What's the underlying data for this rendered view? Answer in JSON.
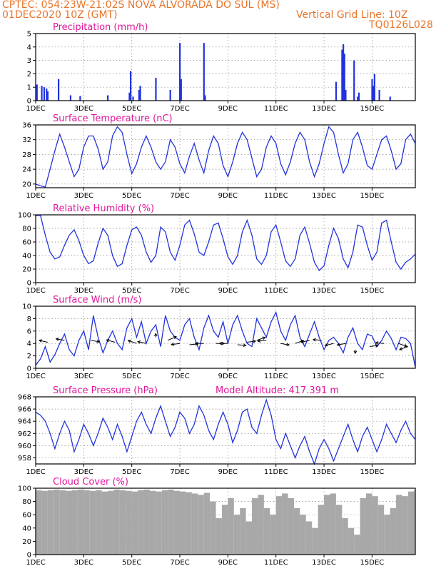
{
  "header": {
    "line1_left": "CPTEC:  054:23W-21:02S  NOVA ALVORADA DO SUL (MS)",
    "line2_left": "01DEC2020 10Z (GMT)",
    "line2_right": "Vertical Grid Line: 10Z",
    "line3_right": "TQ0126L028"
  },
  "colors": {
    "title": "#e0169b",
    "header": "#e8752a",
    "series": "#2233dd",
    "cloud": "#a8a8a8"
  },
  "x_axis": {
    "days": 15.8,
    "tick_days": [
      0,
      2,
      4,
      6,
      8,
      10,
      12,
      14
    ],
    "tick_labels": [
      "1DEC",
      "3DEC",
      "5DEC",
      "7DEC",
      "9DEC",
      "11DEC",
      "13DEC",
      "15DEC"
    ]
  },
  "chart_data": [
    {
      "type": "bar",
      "title": "Precipitation (mm/h)",
      "ylim": [
        0,
        5
      ],
      "yticks": [
        "0",
        "1",
        "2",
        "3",
        "4",
        "5"
      ],
      "series": [
        {
          "name": "precip",
          "x": [
            0.05,
            0.25,
            0.35,
            0.45,
            0.5,
            0.95,
            1.45,
            1.85,
            3.0,
            3.9,
            3.95,
            4.05,
            4.3,
            4.35,
            5.0,
            5.6,
            6.0,
            6.05,
            7.0,
            7.05,
            12.5,
            12.75,
            12.8,
            12.85,
            12.9,
            13.25,
            13.4,
            13.45,
            14.0,
            14.05,
            14.1,
            14.3,
            14.75
          ],
          "values": [
            1.2,
            1.1,
            1.0,
            0.9,
            0.7,
            1.6,
            0.4,
            0.35,
            0.4,
            0.6,
            2.2,
            0.3,
            0.8,
            1.1,
            1.7,
            0.8,
            4.3,
            1.6,
            4.3,
            0.4,
            1.4,
            3.8,
            4.2,
            3.5,
            0.8,
            3.0,
            0.3,
            0.6,
            1.6,
            1.1,
            2.0,
            0.8,
            0.3
          ]
        }
      ]
    },
    {
      "type": "line",
      "title": "Surface Temperature (nC)",
      "ylim": [
        19,
        36
      ],
      "yticks": [
        "20",
        "24",
        "28",
        "32",
        "36"
      ],
      "series": [
        {
          "name": "temp",
          "x": [
            0,
            0.2,
            0.4,
            0.6,
            0.8,
            1,
            1.2,
            1.4,
            1.6,
            1.8,
            2,
            2.2,
            2.4,
            2.6,
            2.8,
            3,
            3.2,
            3.4,
            3.6,
            3.8,
            4,
            4.2,
            4.4,
            4.6,
            4.8,
            5,
            5.2,
            5.4,
            5.6,
            5.8,
            6,
            6.2,
            6.4,
            6.6,
            6.8,
            7,
            7.2,
            7.4,
            7.6,
            7.8,
            8,
            8.2,
            8.4,
            8.6,
            8.8,
            9,
            9.2,
            9.4,
            9.6,
            9.8,
            10,
            10.2,
            10.4,
            10.6,
            10.8,
            11,
            11.2,
            11.4,
            11.6,
            11.8,
            12,
            12.2,
            12.4,
            12.6,
            12.8,
            13,
            13.2,
            13.4,
            13.6,
            13.8,
            14,
            14.2,
            14.4,
            14.6,
            14.8,
            15,
            15.2,
            15.4,
            15.6,
            15.8
          ],
          "values": [
            20,
            19.5,
            19.2,
            24,
            29,
            33.5,
            30,
            26,
            22,
            24,
            30,
            33,
            33,
            29.5,
            24,
            26,
            33,
            35.5,
            34,
            28,
            22.8,
            25.5,
            30,
            33,
            30,
            26,
            24,
            26,
            32,
            30,
            25.5,
            23,
            27.5,
            31,
            26.5,
            23,
            29,
            33,
            31,
            25,
            22,
            26,
            31,
            34,
            32,
            27,
            22,
            24,
            30,
            33,
            31,
            25.5,
            22.5,
            26,
            31,
            34,
            32,
            26,
            22,
            25.5,
            31,
            35.5,
            34,
            28,
            23,
            25.5,
            32,
            34,
            30,
            25,
            24,
            28,
            32,
            33,
            29,
            24,
            25.5,
            32,
            33.5,
            31
          ]
        }
      ]
    },
    {
      "type": "line",
      "title": "Relative Humidity (%)",
      "ylim": [
        0,
        100
      ],
      "yticks": [
        "0",
        "20",
        "40",
        "60",
        "80",
        "100"
      ],
      "series": [
        {
          "name": "rh",
          "x": [
            0,
            0.2,
            0.4,
            0.6,
            0.8,
            1,
            1.2,
            1.4,
            1.6,
            1.8,
            2,
            2.2,
            2.4,
            2.6,
            2.8,
            3,
            3.2,
            3.4,
            3.6,
            3.8,
            4,
            4.2,
            4.4,
            4.6,
            4.8,
            5,
            5.2,
            5.4,
            5.6,
            5.8,
            6,
            6.2,
            6.4,
            6.6,
            6.8,
            7,
            7.2,
            7.4,
            7.6,
            7.8,
            8,
            8.2,
            8.4,
            8.6,
            8.8,
            9,
            9.2,
            9.4,
            9.6,
            9.8,
            10,
            10.2,
            10.4,
            10.6,
            10.8,
            11,
            11.2,
            11.4,
            11.6,
            11.8,
            12,
            12.2,
            12.4,
            12.6,
            12.8,
            13,
            13.2,
            13.4,
            13.6,
            13.8,
            14,
            14.2,
            14.4,
            14.6,
            14.8,
            15,
            15.2,
            15.4,
            15.6,
            15.8
          ],
          "values": [
            99,
            99,
            70,
            45,
            35,
            38,
            55,
            70,
            78,
            62,
            40,
            28,
            32,
            58,
            80,
            70,
            40,
            24,
            28,
            55,
            78,
            82,
            70,
            45,
            30,
            40,
            82,
            75,
            45,
            33,
            55,
            85,
            92,
            72,
            45,
            40,
            60,
            85,
            88,
            65,
            38,
            27,
            40,
            75,
            92,
            70,
            35,
            27,
            40,
            75,
            85,
            60,
            32,
            24,
            35,
            70,
            82,
            58,
            30,
            18,
            25,
            55,
            80,
            65,
            35,
            22,
            45,
            85,
            82,
            55,
            33,
            45,
            88,
            92,
            60,
            30,
            20,
            30,
            35,
            42
          ]
        }
      ]
    },
    {
      "type": "line",
      "title": "Surface Wind (m/s)",
      "ylim": [
        0,
        10
      ],
      "yticks": [
        "0",
        "2",
        "4",
        "6",
        "8",
        "10"
      ],
      "series": [
        {
          "name": "wind",
          "x": [
            0,
            0.2,
            0.4,
            0.6,
            0.8,
            1,
            1.2,
            1.4,
            1.6,
            1.8,
            2,
            2.2,
            2.4,
            2.6,
            2.8,
            3,
            3.2,
            3.4,
            3.6,
            3.8,
            4,
            4.2,
            4.4,
            4.6,
            4.8,
            5,
            5.2,
            5.4,
            5.6,
            5.8,
            6,
            6.2,
            6.4,
            6.6,
            6.8,
            7,
            7.2,
            7.4,
            7.6,
            7.8,
            8,
            8.2,
            8.4,
            8.6,
            8.8,
            9,
            9.2,
            9.4,
            9.6,
            9.8,
            10,
            10.2,
            10.4,
            10.6,
            10.8,
            11,
            11.2,
            11.4,
            11.6,
            11.8,
            12,
            12.2,
            12.4,
            12.6,
            12.8,
            13,
            13.2,
            13.4,
            13.6,
            13.8,
            14,
            14.2,
            14.4,
            14.6,
            14.8,
            15,
            15.2,
            15.4,
            15.6,
            15.8
          ],
          "values": [
            0.5,
            1.5,
            3.5,
            1,
            2.2,
            4,
            5.5,
            3,
            2,
            4.5,
            6,
            3,
            8.5,
            5,
            2.5,
            4.5,
            6,
            4,
            3,
            6.5,
            8,
            5,
            7.5,
            4,
            6,
            7,
            3.5,
            8.5,
            6,
            5,
            4.5,
            7,
            8,
            5,
            3,
            6.5,
            8.5,
            6,
            5,
            7.5,
            4,
            7,
            8.5,
            6,
            4,
            3.5,
            8,
            6.5,
            5,
            7.5,
            9,
            6,
            4.5,
            7,
            8.5,
            5,
            3.5,
            5.5,
            7.5,
            5,
            3,
            4.5,
            5,
            4,
            2.5,
            5,
            6.5,
            4,
            3,
            5.5,
            5.2,
            3.5,
            4.5,
            6,
            4.8,
            3,
            5,
            4.8,
            4,
            0.2
          ]
        }
      ],
      "arrows": {
        "x": [
          0.5,
          1.2,
          2.3,
          3.3,
          4.2,
          4.6,
          5.0,
          5.5,
          6.0,
          6.4,
          7.0,
          7.5,
          8.0,
          8.4,
          8.8,
          9.2,
          9.6,
          10.2,
          10.8,
          11.4,
          11.9,
          12.4,
          12.9,
          13.3,
          13.9,
          14.5,
          15.1,
          15.5
        ],
        "y": [
          4.2,
          4.5,
          4.5,
          4.2,
          4.0,
          4.0,
          5.0,
          4.5,
          4.0,
          3.8,
          4.0,
          4.0,
          4.0,
          3.8,
          4.2,
          4.5,
          4.5,
          4.0,
          4.0,
          4.5,
          4.5,
          4.0,
          4.0,
          3.0,
          3.5,
          4.0,
          4.0,
          3.5
        ],
        "dx": [
          -1,
          -1,
          1,
          -1,
          -1,
          -1,
          0,
          1,
          -1,
          1,
          -1,
          1,
          -1,
          1,
          1,
          1,
          -1,
          1,
          1,
          -1,
          -1,
          -1,
          -1,
          0,
          1,
          -1,
          1,
          -1
        ],
        "dy": [
          0.5,
          0.4,
          -0.4,
          0.6,
          0.8,
          0.5,
          1,
          1,
          -0.3,
          0.2,
          0,
          0,
          0,
          -0.2,
          0.3,
          0.8,
          -0.2,
          -0.4,
          0.8,
          -0.5,
          0.2,
          -0.5,
          -0.4,
          -1,
          0.3,
          0.2,
          -0.8,
          -0.8
        ]
      }
    },
    {
      "type": "line",
      "title": "Surface Pressure (hPa)",
      "annotation": "Model Altitude: 417.391  m",
      "ylim": [
        957,
        968
      ],
      "yticks": [
        "958",
        "960",
        "962",
        "964",
        "966",
        "968"
      ],
      "series": [
        {
          "name": "pressure",
          "x": [
            0,
            0.2,
            0.4,
            0.6,
            0.8,
            1,
            1.2,
            1.4,
            1.6,
            1.8,
            2,
            2.2,
            2.4,
            2.6,
            2.8,
            3,
            3.2,
            3.4,
            3.6,
            3.8,
            4,
            4.2,
            4.4,
            4.6,
            4.8,
            5,
            5.2,
            5.4,
            5.6,
            5.8,
            6,
            6.2,
            6.4,
            6.6,
            6.8,
            7,
            7.2,
            7.4,
            7.6,
            7.8,
            8,
            8.2,
            8.4,
            8.6,
            8.8,
            9,
            9.2,
            9.4,
            9.6,
            9.8,
            10,
            10.2,
            10.4,
            10.6,
            10.8,
            11,
            11.2,
            11.4,
            11.6,
            11.8,
            12,
            12.2,
            12.4,
            12.6,
            12.8,
            13,
            13.2,
            13.4,
            13.6,
            13.8,
            14,
            14.2,
            14.4,
            14.6,
            14.8,
            15,
            15.2,
            15.4,
            15.6,
            15.8
          ],
          "values": [
            965.5,
            965,
            964,
            962,
            959.5,
            962,
            964,
            962.5,
            959,
            961,
            963.5,
            962,
            960,
            962,
            964.5,
            963,
            961,
            963.5,
            961.5,
            959,
            961.5,
            964,
            965.5,
            963.5,
            962,
            964.5,
            966.5,
            964,
            961.5,
            963,
            965.5,
            964.5,
            962,
            963.5,
            966.5,
            965,
            962.5,
            961,
            963.5,
            965.5,
            963.5,
            960.5,
            962.5,
            965.5,
            966,
            963,
            962,
            965,
            967.5,
            965,
            961,
            959.5,
            962,
            960,
            958,
            960,
            961.5,
            959,
            957,
            959.5,
            961,
            959.5,
            957.5,
            959.5,
            961.5,
            963.5,
            961,
            959,
            961.5,
            963,
            961,
            959,
            961,
            963.5,
            962,
            960.5,
            962.5,
            964,
            962,
            961
          ]
        }
      ]
    },
    {
      "type": "bar",
      "title": "Cloud Cover (%)",
      "ylim": [
        0,
        100
      ],
      "yticks": [
        "0",
        "20",
        "40",
        "60",
        "80",
        "100"
      ],
      "series": [
        {
          "name": "cloud",
          "x": [
            0,
            0.25,
            0.5,
            0.75,
            1,
            1.25,
            1.5,
            1.75,
            2,
            2.25,
            2.5,
            2.75,
            3,
            3.25,
            3.5,
            3.75,
            4,
            4.25,
            4.5,
            4.75,
            5,
            5.25,
            5.5,
            5.75,
            6,
            6.25,
            6.5,
            6.75,
            7,
            7.25,
            7.5,
            7.75,
            8,
            8.25,
            8.5,
            8.75,
            9,
            9.25,
            9.5,
            9.75,
            10,
            10.25,
            10.5,
            10.75,
            11,
            11.25,
            11.5,
            11.75,
            12,
            12.25,
            12.5,
            12.75,
            13,
            13.25,
            13.5,
            13.75,
            14,
            14.25,
            14.5,
            14.75,
            15,
            15.25,
            15.5,
            15.75
          ],
          "values": [
            97,
            96,
            97,
            98,
            97,
            96,
            97,
            98,
            97,
            96,
            97,
            95,
            96,
            98,
            97,
            96,
            95,
            97,
            98,
            96,
            95,
            97,
            98,
            96,
            95,
            94,
            92,
            90,
            93,
            80,
            55,
            75,
            85,
            60,
            70,
            50,
            85,
            90,
            70,
            60,
            88,
            92,
            85,
            70,
            60,
            50,
            40,
            75,
            90,
            92,
            75,
            55,
            40,
            30,
            85,
            92,
            88,
            75,
            60,
            70,
            90,
            88,
            95,
            97
          ]
        }
      ]
    }
  ]
}
